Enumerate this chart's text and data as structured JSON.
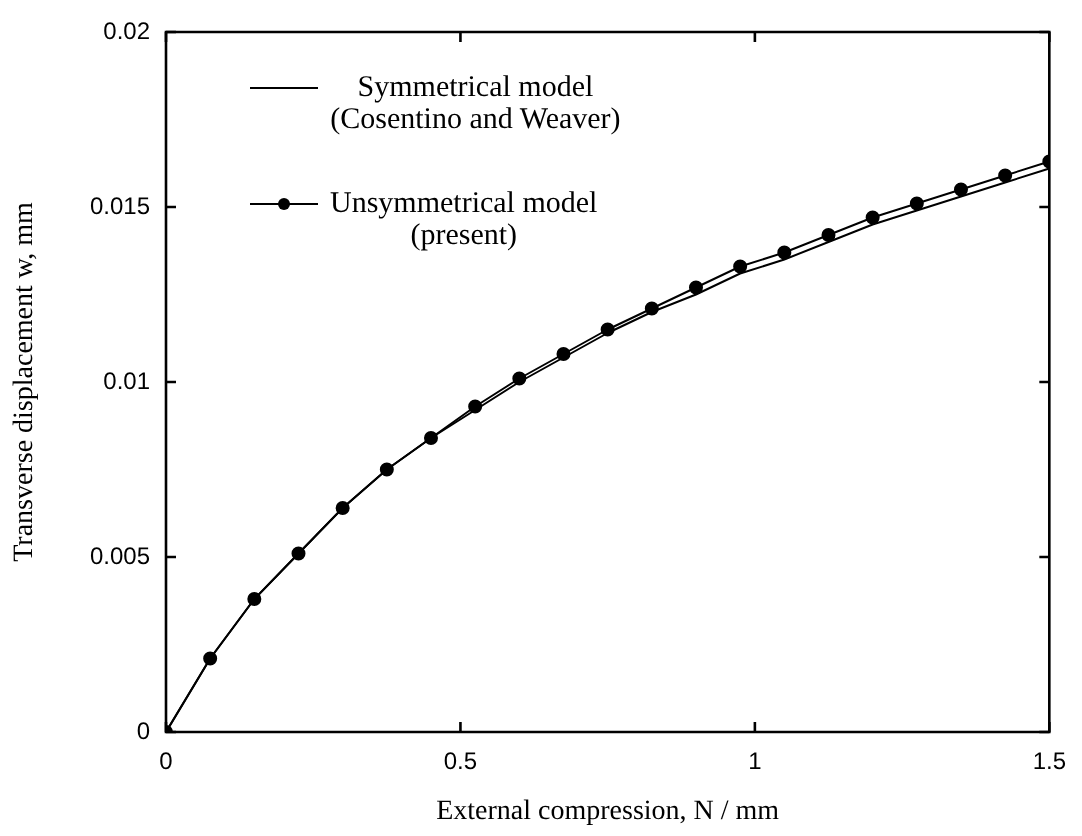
{
  "chart_data": {
    "type": "line",
    "xlabel": "External compression, N / mm",
    "ylabel": "Transverse displacement w, mm",
    "xlim": [
      0,
      1.5
    ],
    "xticks": [
      0,
      0.5,
      1,
      1.5
    ],
    "ylim": [
      0,
      0.02
    ],
    "yticks": [
      0,
      0.005,
      0.01,
      0.015,
      0.02
    ],
    "legend": "top left",
    "marker": "none",
    "line_style": "solid",
    "x": [
      0,
      0.075,
      0.15,
      0.225,
      0.3,
      0.375,
      0.45,
      0.525,
      0.6,
      0.675,
      0.75,
      0.825,
      0.9,
      0.975,
      1.05,
      1.125,
      1.2,
      1.275,
      1.35,
      1.425,
      1.5
    ],
    "series": [
      {
        "name": "Symmetrical model\n(Cosentino and Weaver)",
        "color": "#000000",
        "values": [
          0,
          0.0021,
          0.0038,
          0.0051,
          0.0064,
          0.0075,
          0.0084,
          0.0092,
          0.01,
          0.0107,
          0.0114,
          0.012,
          0.0125,
          0.0131,
          0.0135,
          0.014,
          0.0145,
          0.0149,
          0.0153,
          0.0157,
          0.0161
        ]
      },
      {
        "name": "Unsymmetrical model\n(present)",
        "color": "#000000",
        "marker": "circle",
        "values": [
          0,
          0.0021,
          0.0038,
          0.0051,
          0.0064,
          0.0075,
          0.0084,
          0.0093,
          0.0101,
          0.0108,
          0.0115,
          0.0121,
          0.0127,
          0.0133,
          0.0137,
          0.0142,
          0.0147,
          0.0151,
          0.0155,
          0.0159,
          0.0163
        ]
      }
    ]
  }
}
